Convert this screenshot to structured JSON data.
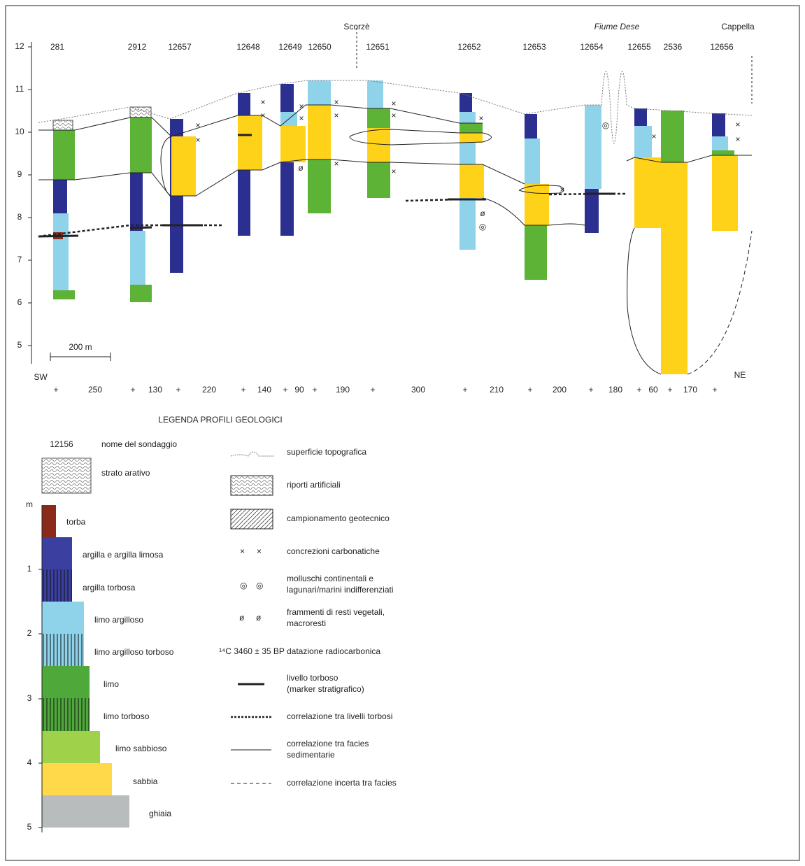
{
  "section": {
    "place_labels": [
      "Scorzè",
      "Fiume Dese",
      "Cappella"
    ],
    "boreholes": [
      "281",
      "2912",
      "12657",
      "12648",
      "12649",
      "12650",
      "12651",
      "12652",
      "12653",
      "12654",
      "12655",
      "2536",
      "12656"
    ],
    "elevation_ticks": [
      "12",
      "11",
      "10",
      "9",
      "8",
      "7",
      "6",
      "5"
    ],
    "direction_labels": [
      "SW",
      "NE"
    ],
    "scale_bar": "200 m",
    "distances": [
      "250",
      "130",
      "220",
      "140",
      "90",
      "190",
      "300",
      "210",
      "200",
      "180",
      "60",
      "170"
    ]
  },
  "legend": {
    "title": "LEGENDA PROFILI GEOLOGICI",
    "sample_name": "12156",
    "sample_caption": "nome del sondaggio",
    "depth_unit": "m",
    "depth_ticks": [
      "1",
      "2",
      "3",
      "4",
      "5"
    ],
    "lithology": [
      "strato arativo",
      "torba",
      "argilla e argilla limosa",
      "argilla torbosa",
      "limo argilloso",
      "limo argilloso torboso",
      "limo",
      "limo torboso",
      "limo sabbioso",
      "sabbia",
      "ghiaia"
    ],
    "symbols": [
      [
        "superficie topografica"
      ],
      [
        "riporti artificiali"
      ],
      [
        "campionamento geotecnico"
      ],
      [
        "concrezioni carbonatiche"
      ],
      [
        "molluschi continentali e",
        "lagunari/marini indifferenziati"
      ],
      [
        "frammenti di resti vegetali,",
        "macroresti"
      ],
      [
        "datazione radiocarbonica"
      ],
      [
        "livello torboso",
        "(marker stratigrafico)"
      ],
      [
        "correlazione tra livelli torbosi"
      ],
      [
        "correlazione tra facies",
        "sedimentarie"
      ],
      [
        "correlazione incerta tra facies"
      ]
    ],
    "radiocarbon_example": "¹⁴C 3460 ± 35 BP"
  }
}
